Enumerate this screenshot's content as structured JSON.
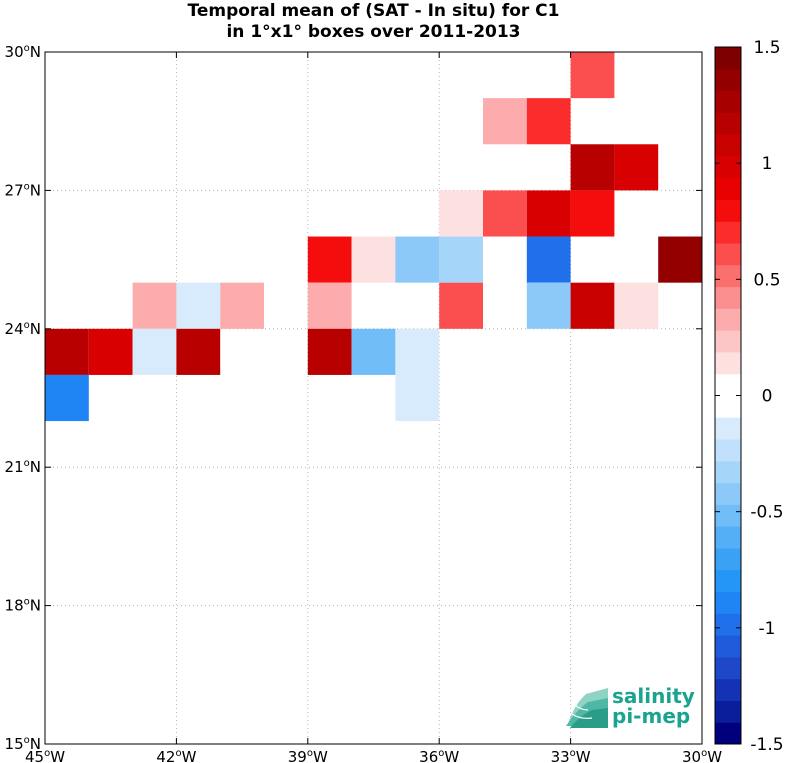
{
  "chart_data": {
    "type": "heatmap",
    "title": "Temporal mean of (SAT - In situ) for C1",
    "subtitle": "in 1°x1° boxes over 2011-2013",
    "x_range": [
      -45,
      -30
    ],
    "y_range": [
      15,
      30
    ],
    "x_ticks": [
      -45,
      -42,
      -39,
      -36,
      -33,
      -30
    ],
    "x_tick_labels": [
      "45°W",
      "42°W",
      "39°W",
      "36°W",
      "33°W",
      "30°W"
    ],
    "y_ticks": [
      15,
      18,
      21,
      24,
      27,
      30
    ],
    "y_tick_labels": [
      "15°N",
      "18°N",
      "21°N",
      "24°N",
      "27°N",
      "30°N"
    ],
    "grid": true,
    "colorbar": {
      "range": [
        -1.5,
        1.5
      ],
      "levels": 32,
      "ticks": [
        1.5,
        1,
        0.5,
        0,
        -0.5,
        -1,
        -1.5
      ],
      "tick_labels": [
        "1.5",
        "1",
        "0.5",
        "0",
        "-0.5",
        "-1",
        "-1.5"
      ],
      "colors": [
        "#00007f",
        "#0a1e9c",
        "#1433b4",
        "#1e48c8",
        "#1f5cdc",
        "#1f70ea",
        "#1f84f4",
        "#2496f5",
        "#3aa2f5",
        "#55aff6",
        "#70bdf7",
        "#8cc9f8",
        "#a6d5fa",
        "#c0e0fb",
        "#d8ebfc",
        "#ffffff",
        "#ffffff",
        "#fde0e0",
        "#fcc6c6",
        "#fcacac",
        "#fb8f8f",
        "#fb6f6f",
        "#fb4f4f",
        "#fb2c2c",
        "#f50c0c",
        "#e80000",
        "#d80000",
        "#c80000",
        "#b80000",
        "#a60000",
        "#940000",
        "#7f0000"
      ]
    },
    "cells": [
      {
        "lon": -33,
        "lat": 29,
        "value": 0.6
      },
      {
        "lon": -35,
        "lat": 28,
        "value": 0.3
      },
      {
        "lon": -34,
        "lat": 28,
        "value": 0.7
      },
      {
        "lon": -33,
        "lat": 27,
        "value": 1.2
      },
      {
        "lon": -32,
        "lat": 27,
        "value": 1.0
      },
      {
        "lon": -36,
        "lat": 26,
        "value": 0.15
      },
      {
        "lon": -35,
        "lat": 26,
        "value": 0.6
      },
      {
        "lon": -34,
        "lat": 26,
        "value": 1.0
      },
      {
        "lon": -33,
        "lat": 26,
        "value": 0.8
      },
      {
        "lon": -39,
        "lat": 25,
        "value": 0.8
      },
      {
        "lon": -38,
        "lat": 25,
        "value": 0.15
      },
      {
        "lon": -37,
        "lat": 25,
        "value": -0.4
      },
      {
        "lon": -36,
        "lat": 25,
        "value": -0.3
      },
      {
        "lon": -34,
        "lat": 25,
        "value": -0.95
      },
      {
        "lon": -31,
        "lat": 25,
        "value": 1.4
      },
      {
        "lon": -43,
        "lat": 24,
        "value": 0.3
      },
      {
        "lon": -42,
        "lat": 24,
        "value": -0.15
      },
      {
        "lon": -41,
        "lat": 24,
        "value": 0.3
      },
      {
        "lon": -39,
        "lat": 24,
        "value": 0.3
      },
      {
        "lon": -36,
        "lat": 24,
        "value": 0.6
      },
      {
        "lon": -34,
        "lat": 24,
        "value": -0.4
      },
      {
        "lon": -33,
        "lat": 24,
        "value": 1.05
      },
      {
        "lon": -32,
        "lat": 24,
        "value": 0.15
      },
      {
        "lon": -45,
        "lat": 23,
        "value": 1.2
      },
      {
        "lon": -44,
        "lat": 23,
        "value": 1.0
      },
      {
        "lon": -43,
        "lat": 23,
        "value": -0.15
      },
      {
        "lon": -42,
        "lat": 23,
        "value": 1.2
      },
      {
        "lon": -39,
        "lat": 23,
        "value": 1.15
      },
      {
        "lon": -38,
        "lat": 23,
        "value": -0.55
      },
      {
        "lon": -37,
        "lat": 23,
        "value": -0.15
      },
      {
        "lon": -45,
        "lat": 22,
        "value": -0.9
      },
      {
        "lon": -37,
        "lat": 22,
        "value": -0.15
      }
    ]
  },
  "logo": {
    "line1": "salinity",
    "line2": "pi-mep",
    "color": "#1aa48f"
  }
}
